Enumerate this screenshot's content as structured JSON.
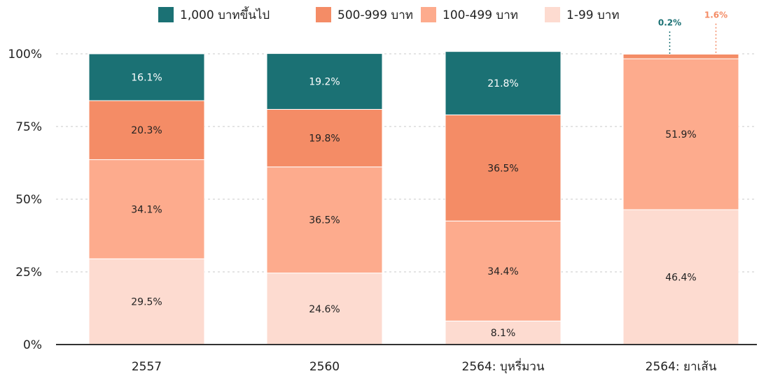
{
  "chart_data": {
    "type": "bar",
    "stacked": true,
    "categories": [
      "2557",
      "2560",
      "2564: บุหรี่มวน",
      "2564: ยาเส้น"
    ],
    "series": [
      {
        "name": "1-99 บาท",
        "color": "#fddbd0",
        "values": [
          29.5,
          24.6,
          8.1,
          46.4
        ],
        "labels": [
          "29.5%",
          "24.6%",
          "8.1%",
          "46.4%"
        ]
      },
      {
        "name": "100-499 บาท",
        "color": "#fdab8d",
        "values": [
          34.1,
          36.5,
          34.4,
          51.9
        ],
        "labels": [
          "34.1%",
          "36.5%",
          "34.4%",
          "51.9%"
        ]
      },
      {
        "name": "500-999 บาท",
        "color": "#f48c66",
        "values": [
          20.3,
          19.8,
          36.5,
          1.6
        ],
        "labels": [
          "20.3%",
          "19.8%",
          "36.5%",
          "1.6%"
        ]
      },
      {
        "name": "1,000 บาทขึ้นไป",
        "color": "#1b7174",
        "values": [
          16.1,
          19.2,
          21.8,
          0.2
        ],
        "labels": [
          "16.1%",
          "19.2%",
          "21.8%",
          "0.2%"
        ]
      }
    ],
    "legend_order": [
      3,
      2,
      1,
      0
    ],
    "yticks": [
      "0%",
      "25%",
      "50%",
      "75%",
      "100%"
    ],
    "ylim": [
      0,
      100
    ],
    "grid": true,
    "legend_position": "top"
  }
}
